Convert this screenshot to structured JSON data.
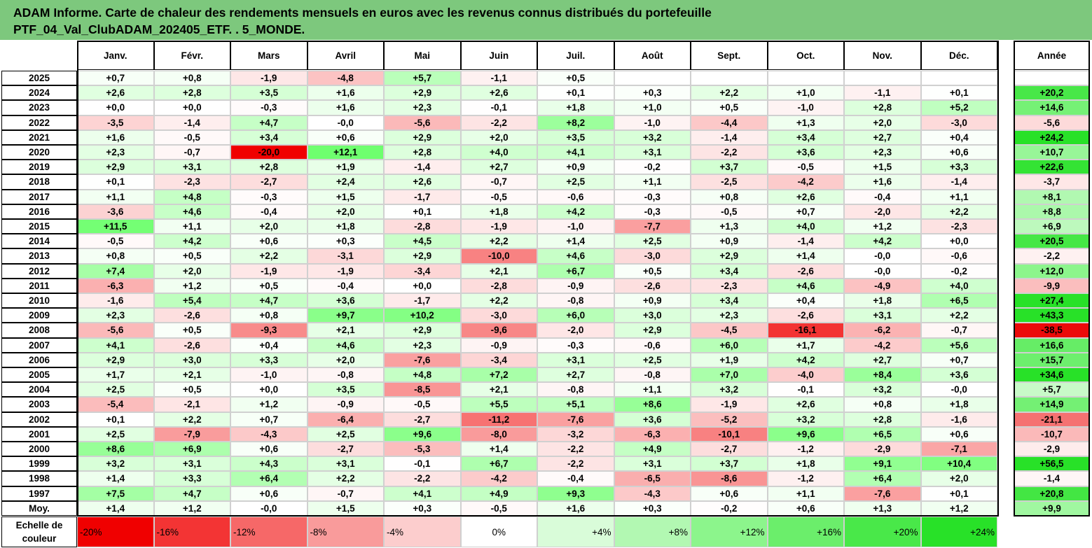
{
  "title": {
    "line1": "ADAM Informe. Carte de chaleur des rendements mensuels en euros avec les revenus connus distribués du portefeuille",
    "line2": "PTF_04_Val_ClubADAM_202405_ETF. . 5_MONDE."
  },
  "chart_data": {
    "type": "heatmap",
    "months": [
      "Janv.",
      "Févr.",
      "Mars",
      "Avril",
      "Mai",
      "Juin",
      "Juil.",
      "Août",
      "Sept.",
      "Oct.",
      "Nov.",
      "Déc."
    ],
    "year_header": "Année",
    "rows": [
      {
        "year": "2025",
        "m": [
          "+0,7",
          "+0,8",
          "-1,9",
          "-4,8",
          "+5,7",
          "-1,1",
          "+0,5",
          "",
          "",
          "",
          "",
          ""
        ],
        "annual": ""
      },
      {
        "year": "2024",
        "m": [
          "+2,6",
          "+2,8",
          "+3,5",
          "+1,6",
          "+2,9",
          "+2,6",
          "+0,1",
          "+0,3",
          "+2,2",
          "+1,0",
          "-1,1",
          "+0,1"
        ],
        "annual": "+20,2"
      },
      {
        "year": "2023",
        "m": [
          "+0,0",
          "+0,0",
          "-0,3",
          "+1,6",
          "+2,3",
          "-0,1",
          "+1,8",
          "+1,0",
          "+0,5",
          "-1,0",
          "+2,8",
          "+5,2"
        ],
        "annual": "+14,6"
      },
      {
        "year": "2022",
        "m": [
          "-3,5",
          "-1,4",
          "+4,7",
          "-0,0",
          "-5,6",
          "-2,2",
          "+8,2",
          "-1,0",
          "-4,4",
          "+1,3",
          "+2,0",
          "-3,0"
        ],
        "annual": "-5,6"
      },
      {
        "year": "2021",
        "m": [
          "+1,6",
          "-0,5",
          "+3,4",
          "+0,6",
          "+2,9",
          "+2,0",
          "+3,5",
          "+3,2",
          "-1,4",
          "+3,4",
          "+2,7",
          "+0,4"
        ],
        "annual": "+24,2"
      },
      {
        "year": "2020",
        "m": [
          "+2,3",
          "-0,7",
          "-20,0",
          "+12,1",
          "+2,8",
          "+4,0",
          "+4,1",
          "+3,1",
          "-2,2",
          "+3,6",
          "+2,3",
          "+0,6"
        ],
        "annual": "+10,7"
      },
      {
        "year": "2019",
        "m": [
          "+2,9",
          "+3,1",
          "+2,8",
          "+1,9",
          "-1,4",
          "+2,7",
          "+0,9",
          "-0,2",
          "+3,7",
          "-0,5",
          "+1,5",
          "+3,3"
        ],
        "annual": "+22,6"
      },
      {
        "year": "2018",
        "m": [
          "+0,1",
          "-2,3",
          "-2,7",
          "+2,4",
          "+2,6",
          "-0,7",
          "+2,5",
          "+1,1",
          "-2,5",
          "-4,2",
          "+1,6",
          "-1,4"
        ],
        "annual": "-3,7"
      },
      {
        "year": "2017",
        "m": [
          "+1,1",
          "+4,8",
          "-0,3",
          "+1,5",
          "-1,7",
          "-0,5",
          "-0,6",
          "-0,3",
          "+0,8",
          "+2,6",
          "-0,4",
          "+1,1"
        ],
        "annual": "+8,1"
      },
      {
        "year": "2016",
        "m": [
          "-3,6",
          "+4,6",
          "-0,4",
          "+2,0",
          "+0,1",
          "+1,8",
          "+4,2",
          "-0,3",
          "-0,5",
          "+0,7",
          "-2,0",
          "+2,2"
        ],
        "annual": "+8,8"
      },
      {
        "year": "2015",
        "m": [
          "+11,5",
          "+1,1",
          "+2,0",
          "+1,8",
          "-2,8",
          "-1,9",
          "-1,0",
          "-7,7",
          "+1,3",
          "+4,0",
          "+1,2",
          "-2,3"
        ],
        "annual": "+6,9"
      },
      {
        "year": "2014",
        "m": [
          "-0,5",
          "+4,2",
          "+0,6",
          "+0,3",
          "+4,5",
          "+2,2",
          "+1,4",
          "+2,5",
          "+0,9",
          "-1,4",
          "+4,2",
          "+0,0"
        ],
        "annual": "+20,5"
      },
      {
        "year": "2013",
        "m": [
          "+0,8",
          "+0,5",
          "+2,2",
          "-3,1",
          "+2,9",
          "-10,0",
          "+4,6",
          "-3,0",
          "+2,9",
          "+1,4",
          "-0,0",
          "-0,6"
        ],
        "annual": "-2,2"
      },
      {
        "year": "2012",
        "m": [
          "+7,4",
          "+2,0",
          "-1,9",
          "-1,9",
          "-3,4",
          "+2,1",
          "+6,7",
          "+0,5",
          "+3,4",
          "-2,6",
          "-0,0",
          "-0,2"
        ],
        "annual": "+12,0"
      },
      {
        "year": "2011",
        "m": [
          "-6,3",
          "+1,2",
          "+0,5",
          "-0,4",
          "+0,0",
          "-2,8",
          "-0,9",
          "-2,6",
          "-2,3",
          "+4,6",
          "-4,9",
          "+4,0"
        ],
        "annual": "-9,9"
      },
      {
        "year": "2010",
        "m": [
          "-1,6",
          "+5,4",
          "+4,7",
          "+3,6",
          "-1,7",
          "+2,2",
          "-0,8",
          "+0,9",
          "+3,4",
          "+0,4",
          "+1,8",
          "+6,5"
        ],
        "annual": "+27,4"
      },
      {
        "year": "2009",
        "m": [
          "+2,3",
          "-2,6",
          "+0,8",
          "+9,7",
          "+10,2",
          "-3,0",
          "+6,0",
          "+3,0",
          "+2,3",
          "-2,6",
          "+3,1",
          "+2,2"
        ],
        "annual": "+43,3"
      },
      {
        "year": "2008",
        "m": [
          "-5,6",
          "+0,5",
          "-9,3",
          "+2,1",
          "+2,9",
          "-9,6",
          "-2,0",
          "+2,9",
          "-4,5",
          "-16,1",
          "-6,2",
          "-0,7"
        ],
        "annual": "-38,5"
      },
      {
        "year": "2007",
        "m": [
          "+4,1",
          "-2,6",
          "+0,4",
          "+4,6",
          "+2,3",
          "-0,9",
          "-0,3",
          "-0,6",
          "+6,0",
          "+1,7",
          "-4,2",
          "+5,6"
        ],
        "annual": "+16,6"
      },
      {
        "year": "2006",
        "m": [
          "+2,9",
          "+3,0",
          "+3,3",
          "+2,0",
          "-7,6",
          "-3,4",
          "+3,1",
          "+2,5",
          "+1,9",
          "+4,2",
          "+2,7",
          "+0,7"
        ],
        "annual": "+15,7"
      },
      {
        "year": "2005",
        "m": [
          "+1,7",
          "+2,1",
          "-1,0",
          "-0,8",
          "+4,8",
          "+7,2",
          "+2,7",
          "-0,8",
          "+7,0",
          "-4,0",
          "+8,4",
          "+3,6"
        ],
        "annual": "+34,6"
      },
      {
        "year": "2004",
        "m": [
          "+2,5",
          "+0,5",
          "+0,0",
          "+3,5",
          "-8,5",
          "+2,1",
          "-0,8",
          "+1,1",
          "+3,2",
          "-0,1",
          "+3,2",
          "-0,0"
        ],
        "annual": "+5,7"
      },
      {
        "year": "2003",
        "m": [
          "-5,4",
          "-2,1",
          "+1,2",
          "-0,9",
          "-0,5",
          "+5,5",
          "+5,1",
          "+8,6",
          "-1,9",
          "+2,6",
          "+0,8",
          "+1,8"
        ],
        "annual": "+14,9"
      },
      {
        "year": "2002",
        "m": [
          "+0,1",
          "+2,2",
          "+0,7",
          "-6,4",
          "-2,7",
          "-11,2",
          "-7,6",
          "+3,6",
          "-5,2",
          "+3,2",
          "+2,8",
          "-1,6"
        ],
        "annual": "-21,1"
      },
      {
        "year": "2001",
        "m": [
          "+2,5",
          "-7,9",
          "-4,3",
          "+2,5",
          "+9,6",
          "-8,0",
          "-3,2",
          "-6,3",
          "-10,1",
          "+9,6",
          "+6,5",
          "+0,6"
        ],
        "annual": "-10,7"
      },
      {
        "year": "2000",
        "m": [
          "+8,6",
          "+6,9",
          "+0,6",
          "-2,7",
          "-5,3",
          "+1,4",
          "-2,2",
          "+4,9",
          "-2,7",
          "-1,2",
          "-2,9",
          "-7,1"
        ],
        "annual": "-2,9"
      },
      {
        "year": "1999",
        "m": [
          "+3,2",
          "+3,1",
          "+4,3",
          "+3,1",
          "-0,1",
          "+6,7",
          "-2,2",
          "+3,1",
          "+3,7",
          "+1,8",
          "+9,1",
          "+10,4"
        ],
        "annual": "+56,5"
      },
      {
        "year": "1998",
        "m": [
          "+1,4",
          "+3,3",
          "+6,4",
          "+2,2",
          "-2,2",
          "-4,2",
          "-0,4",
          "-6,5",
          "-8,6",
          "-1,2",
          "+6,4",
          "+2,0"
        ],
        "annual": "-1,4"
      },
      {
        "year": "1997",
        "m": [
          "+7,5",
          "+4,7",
          "+0,6",
          "-0,7",
          "+4,1",
          "+4,9",
          "+9,3",
          "-4,3",
          "+0,6",
          "+1,1",
          "-7,6",
          "+0,1"
        ],
        "annual": "+20,8"
      },
      {
        "year": "Moy.",
        "m": [
          "+1,4",
          "+1,2",
          "-0,0",
          "+1,5",
          "+0,3",
          "-0,5",
          "+1,6",
          "+0,3",
          "-0,2",
          "+0,6",
          "+1,3",
          "+1,2"
        ],
        "annual": "+9,9"
      }
    ],
    "scale": {
      "label": "Echelle de couleur",
      "steps": [
        "-20%",
        "-16%",
        "-12%",
        "-8%",
        "-4%",
        "0%",
        "+4%",
        "+8%",
        "+12%",
        "+16%",
        "+20%",
        "+24%"
      ]
    }
  }
}
